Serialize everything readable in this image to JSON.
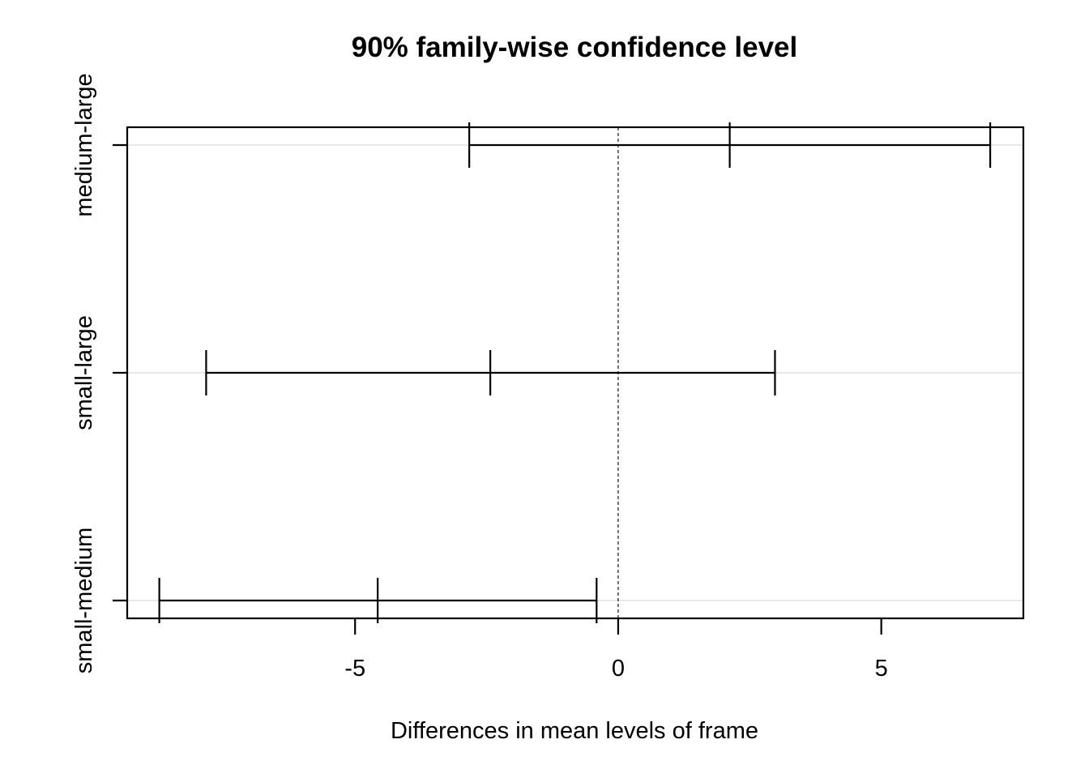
{
  "chart_data": {
    "type": "errorbar",
    "title": "90% family-wise confidence level",
    "xlabel": "Differences in mean levels of frame",
    "ylabel": "",
    "xlim": [
      -9.33,
      7.7
    ],
    "xticks": [
      -5,
      0,
      5
    ],
    "xtick_labels": [
      "-5",
      "0",
      "5"
    ],
    "reference_line": 0,
    "grid": true,
    "comparisons": [
      {
        "label": "medium-large",
        "lwr": -2.83,
        "diff": 2.12,
        "upr": 7.07
      },
      {
        "label": "small-large",
        "lwr": -7.83,
        "diff": -2.43,
        "upr": 2.98
      },
      {
        "label": "small-medium",
        "lwr": -8.72,
        "diff": -4.57,
        "upr": -0.41
      }
    ]
  }
}
